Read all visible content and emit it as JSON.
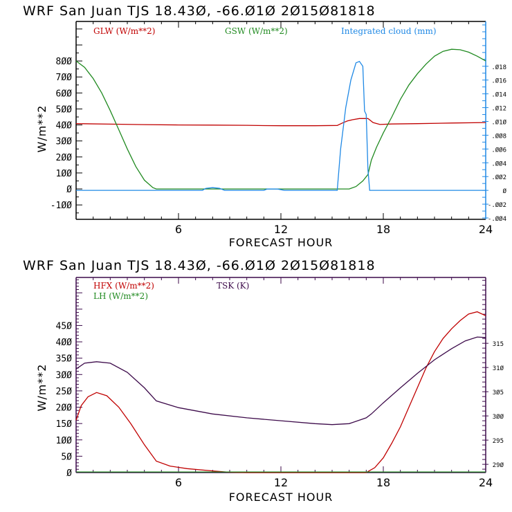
{
  "colors": {
    "glw": "#c00000",
    "gsw": "#208a20",
    "cloud": "#1e88e5",
    "hfx": "#c00000",
    "lh": "#208a20",
    "tsk": "#3c0a4a",
    "axis_top": "#000000",
    "axis_right_top": "#1e88e5",
    "axis_bottom": "#3c0a4a"
  },
  "chart_data": [
    {
      "type": "line",
      "title": "WRF   San Juan TJS  18.430, -66.010  2015081818",
      "xlabel": "FORECAST HOUR",
      "ylabel": "W/m**2",
      "xlim": [
        0,
        24
      ],
      "ylim": [
        -190,
        1047
      ],
      "y2lim": [
        -0.0042,
        0.0245
      ],
      "x_ticks": [
        6,
        12,
        18,
        24
      ],
      "y_ticks": [
        800,
        700,
        600,
        500,
        400,
        300,
        200,
        100,
        0,
        -100
      ],
      "y_tick_labels": [
        "800",
        "700",
        "600",
        "500",
        "400",
        "300",
        "200",
        "100",
        "0",
        "-100"
      ],
      "y2_ticks": [
        0.018,
        0.016,
        0.014,
        0.012,
        0.01,
        0.008,
        0.006,
        0.004,
        0.002,
        0,
        -0.002,
        -0.004
      ],
      "y2_tick_labels": [
        ".018",
        ".016",
        ".014",
        ".012",
        ".010",
        ".008",
        ".006",
        ".004",
        ".002",
        "0",
        "-.002",
        "-.004"
      ],
      "series": [
        {
          "name": "GLW (W/m**2)",
          "axis": "left",
          "x": [
            0,
            2,
            4,
            6,
            8,
            10,
            11,
            12,
            14,
            15.3,
            15.6,
            15.9,
            16.2,
            16.6,
            17.1,
            17.4,
            17.8,
            18.5,
            20,
            22,
            24
          ],
          "y": [
            408,
            405,
            402,
            400,
            399,
            398,
            396,
            395,
            395,
            397,
            412,
            425,
            433,
            440,
            440,
            415,
            403,
            406,
            408,
            412,
            415
          ]
        },
        {
          "name": "GSW (W/m**2)",
          "axis": "left",
          "x": [
            0,
            0.5,
            1,
            1.5,
            2,
            2.5,
            3,
            3.5,
            4,
            4.5,
            4.7,
            5,
            16,
            16.4,
            16.8,
            17.1,
            17.3,
            17.6,
            18,
            18.5,
            19,
            19.5,
            20,
            20.5,
            21,
            21.5,
            22,
            22.5,
            23,
            23.5,
            24
          ],
          "y": [
            800,
            760,
            690,
            600,
            490,
            370,
            250,
            140,
            55,
            8,
            0,
            0,
            0,
            15,
            50,
            90,
            180,
            260,
            350,
            450,
            560,
            650,
            720,
            780,
            830,
            860,
            873,
            870,
            855,
            830,
            800
          ]
        },
        {
          "name": "Integrated cloud (mm)",
          "axis": "right",
          "x": [
            0,
            7.4,
            7.6,
            8,
            8.4,
            8.7,
            9,
            11,
            11.2,
            11.8,
            12.2,
            15.3,
            15.5,
            15.8,
            16.1,
            16.4,
            16.6,
            16.8,
            16.9,
            17.0,
            17.1,
            17.2,
            24
          ],
          "y": [
            0,
            0,
            0.0003,
            0.0004,
            0.0003,
            0,
            0,
            0,
            0.0002,
            0.0002,
            0,
            0,
            0.006,
            0.012,
            0.016,
            0.0185,
            0.0187,
            0.018,
            0.0115,
            0.011,
            0.003,
            0,
            0
          ]
        }
      ]
    },
    {
      "type": "line",
      "title": "WRF   San Juan TJS  18.430, -66.010  2015081818",
      "xlabel": "FORECAST HOUR",
      "ylabel": "W/m**2",
      "xlim": [
        0,
        24
      ],
      "ylim": [
        0,
        597
      ],
      "y2lim": [
        288.3,
        328.6
      ],
      "x_ticks": [
        6,
        12,
        18,
        24
      ],
      "y_ticks": [
        450,
        400,
        350,
        300,
        250,
        200,
        150,
        100,
        50,
        0
      ],
      "y_tick_labels": [
        "450",
        "400",
        "350",
        "300",
        "250",
        "200",
        "150",
        "100",
        "50",
        "0"
      ],
      "y2_ticks": [
        315,
        310,
        305,
        300,
        295,
        290
      ],
      "y2_tick_labels": [
        "315",
        "310",
        "305",
        "300",
        "295",
        "290"
      ],
      "series": [
        {
          "name": "HFX (W/m**2)",
          "axis": "left",
          "x": [
            0,
            0.3,
            0.7,
            1.2,
            1.8,
            2.5,
            3.2,
            4,
            4.7,
            5.5,
            6.5,
            8,
            9,
            10,
            17,
            17.5,
            18,
            18.5,
            19,
            19.5,
            20,
            20.5,
            21,
            21.5,
            22,
            22.5,
            23,
            23.5,
            24
          ],
          "y": [
            160,
            205,
            232,
            245,
            235,
            200,
            150,
            85,
            35,
            20,
            12,
            5,
            1,
            0,
            0,
            15,
            45,
            90,
            140,
            200,
            260,
            320,
            370,
            410,
            440,
            465,
            485,
            492,
            480
          ]
        },
        {
          "name": "LH  (W/m**2)",
          "axis": "left",
          "x": [
            0,
            24
          ],
          "y": [
            2,
            2
          ]
        },
        {
          "name": "TSK (K)",
          "axis": "right",
          "x": [
            0,
            0.5,
            1.2,
            2,
            3,
            4,
            4.7,
            6,
            8,
            10,
            12,
            14,
            15,
            16,
            17,
            17.3,
            18,
            19,
            20,
            21,
            22,
            22.8,
            23.5,
            24
          ],
          "y": [
            309.7,
            310.9,
            311.2,
            310.9,
            309.0,
            305.8,
            303.1,
            301.7,
            300.4,
            299.6,
            299.0,
            298.4,
            298.2,
            298.4,
            299.6,
            300.4,
            302.7,
            305.8,
            308.8,
            311.6,
            313.9,
            315.5,
            316.3,
            316.2
          ]
        }
      ]
    }
  ],
  "panels": [
    {
      "title": "WRF   San Juan TJS  18.43Ø, -66.Ø1Ø  2Ø15Ø81818",
      "ylabel": "W/m**2",
      "xlabel": "FORECAST HOUR",
      "legend": [
        "GLW (W/m**2)",
        "GSW (W/m**2)",
        "Integrated cloud (mm)"
      ]
    },
    {
      "title": "WRF   San Juan TJS  18.43Ø, -66.Ø1Ø  2Ø15Ø81818",
      "ylabel": "W/m**2",
      "xlabel": "FORECAST HOUR",
      "legend": [
        "HFX (W/m**2)",
        "LH  (W/m**2)",
        "TSK (K)"
      ]
    }
  ]
}
